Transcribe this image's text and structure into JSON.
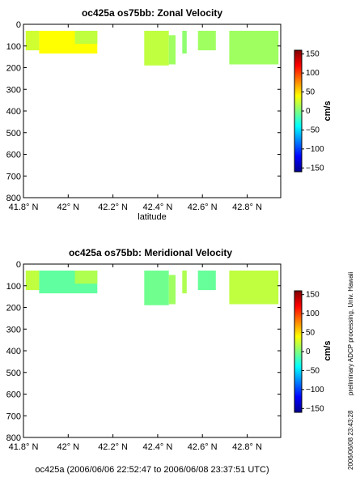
{
  "chart_data": [
    {
      "type": "heatmap",
      "title": "oc425a os75bb: Zonal Velocity",
      "xlabel": "latitude",
      "ylabel": "",
      "xlim": [
        41.8,
        42.95
      ],
      "ylim": [
        800,
        0
      ],
      "x_ticks": [
        41.8,
        42.0,
        42.2,
        42.4,
        42.6,
        42.8
      ],
      "x_tick_labels": [
        "41.8° N",
        "42° N",
        "42.2° N",
        "42.4° N",
        "42.6° N",
        "42.8° N"
      ],
      "y_ticks": [
        0,
        100,
        200,
        300,
        400,
        500,
        600,
        700,
        800
      ],
      "y_tick_labels": [
        "0",
        "100",
        "200",
        "300",
        "400",
        "500",
        "600",
        "700",
        "800"
      ],
      "colorbar": {
        "label": "cm/s",
        "range": [
          -160,
          160
        ],
        "ticks": [
          150,
          100,
          50,
          0,
          -50,
          -100,
          -150
        ],
        "tick_labels": [
          "150",
          "100",
          "50",
          "0",
          "−50",
          "−100",
          "−150"
        ]
      },
      "patches": [
        {
          "lat": [
            41.81,
            41.87
          ],
          "depth": [
            30,
            120
          ],
          "value": 25
        },
        {
          "lat": [
            41.87,
            42.13
          ],
          "depth": [
            30,
            135
          ],
          "value": 40
        },
        {
          "lat": [
            42.03,
            42.13
          ],
          "depth": [
            30,
            90
          ],
          "value": 20
        },
        {
          "lat": [
            42.34,
            42.45
          ],
          "depth": [
            30,
            190
          ],
          "value": 20
        },
        {
          "lat": [
            42.45,
            42.48
          ],
          "depth": [
            50,
            185
          ],
          "value": 10
        },
        {
          "lat": [
            42.51,
            42.53
          ],
          "depth": [
            30,
            135
          ],
          "value": 5
        },
        {
          "lat": [
            42.58,
            42.66
          ],
          "depth": [
            30,
            120
          ],
          "value": 10
        },
        {
          "lat": [
            42.72,
            42.94
          ],
          "depth": [
            30,
            185
          ],
          "value": 10
        }
      ]
    },
    {
      "type": "heatmap",
      "title": "oc425a os75bb: Meridional Velocity",
      "xlabel": "",
      "ylabel": "",
      "xlim": [
        41.8,
        42.95
      ],
      "ylim": [
        800,
        0
      ],
      "x_ticks": [
        41.8,
        42.0,
        42.2,
        42.4,
        42.6,
        42.8
      ],
      "x_tick_labels": [
        "41.8° N",
        "42° N",
        "42.2° N",
        "42.4° N",
        "42.6° N",
        "42.8° N"
      ],
      "y_ticks": [
        0,
        100,
        200,
        300,
        400,
        500,
        600,
        700,
        800
      ],
      "y_tick_labels": [
        "0",
        "100",
        "200",
        "300",
        "400",
        "500",
        "600",
        "700",
        "800"
      ],
      "colorbar": {
        "label": "cm/s",
        "range": [
          -160,
          160
        ],
        "ticks": [
          150,
          100,
          50,
          0,
          -50,
          -100,
          -150
        ],
        "tick_labels": [
          "150",
          "100",
          "50",
          "0",
          "−50",
          "−100",
          "−150"
        ]
      },
      "patches": [
        {
          "lat": [
            41.81,
            41.87
          ],
          "depth": [
            30,
            120
          ],
          "value": 20
        },
        {
          "lat": [
            41.87,
            42.13
          ],
          "depth": [
            30,
            135
          ],
          "value": -10
        },
        {
          "lat": [
            42.03,
            42.13
          ],
          "depth": [
            30,
            90
          ],
          "value": 15
        },
        {
          "lat": [
            42.34,
            42.45
          ],
          "depth": [
            30,
            190
          ],
          "value": -5
        },
        {
          "lat": [
            42.45,
            42.48
          ],
          "depth": [
            50,
            185
          ],
          "value": 10
        },
        {
          "lat": [
            42.51,
            42.53
          ],
          "depth": [
            30,
            135
          ],
          "value": 15
        },
        {
          "lat": [
            42.58,
            42.66
          ],
          "depth": [
            30,
            120
          ],
          "value": -8
        },
        {
          "lat": [
            42.72,
            42.94
          ],
          "depth": [
            30,
            185
          ],
          "value": 20
        }
      ]
    }
  ],
  "footer": "oc425a (2006/06/06 22:52:47 to 2006/06/08 23:37:51 UTC)",
  "side_note": "preliminary ADCP processing,   Univ. Hawaii",
  "side_date": "2006/06/08 23:43:28"
}
